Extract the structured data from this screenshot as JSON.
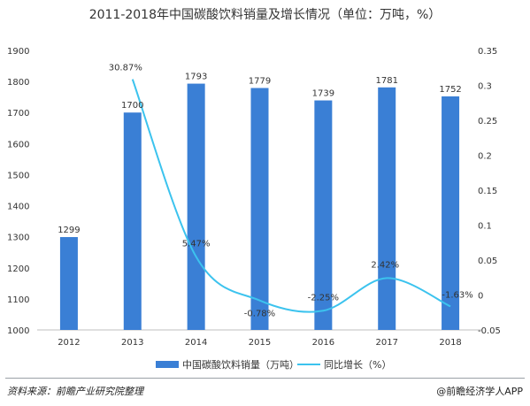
{
  "chart_data": {
    "type": "bar",
    "title": "2011-2018年中国碳酸饮料销量及增长情况（单位：万吨，%）",
    "categories": [
      "2012",
      "2013",
      "2014",
      "2015",
      "2016",
      "2017",
      "2018"
    ],
    "series": [
      {
        "name": "中国碳酸饮料销量（万吨）",
        "type": "bar",
        "axis": "left",
        "color": "#3a7fd5",
        "values": [
          1299,
          1700,
          1793,
          1779,
          1739,
          1781,
          1752
        ],
        "labels": [
          "1299",
          "1700",
          "1793",
          "1779",
          "1739",
          "1781",
          "1752"
        ]
      },
      {
        "name": "同比增长（%）",
        "type": "line",
        "axis": "right",
        "color": "#3cc3ee",
        "values": [
          null,
          0.3087,
          0.0547,
          -0.0078,
          -0.0225,
          0.0242,
          -0.0163
        ],
        "labels": [
          "",
          "30.87%",
          "5.47%",
          "-0.78%",
          "-2.25%",
          "2.42%",
          "-1.63%"
        ]
      }
    ],
    "y_left": {
      "range": [
        1000,
        1900
      ],
      "ticks": [
        "1000",
        "1100",
        "1200",
        "1300",
        "1400",
        "1500",
        "1600",
        "1700",
        "1800",
        "1900"
      ]
    },
    "y_right": {
      "range": [
        -0.05,
        0.35
      ],
      "ticks": [
        "-0.05",
        "0",
        "0.05",
        "0.1",
        "0.15",
        "0.2",
        "0.25",
        "0.3",
        "0.35"
      ]
    },
    "grid": false,
    "legend": "bottom"
  },
  "footer": {
    "source": "资料来源：前瞻产业研究院整理",
    "brand": "@前瞻经济学人APP"
  }
}
